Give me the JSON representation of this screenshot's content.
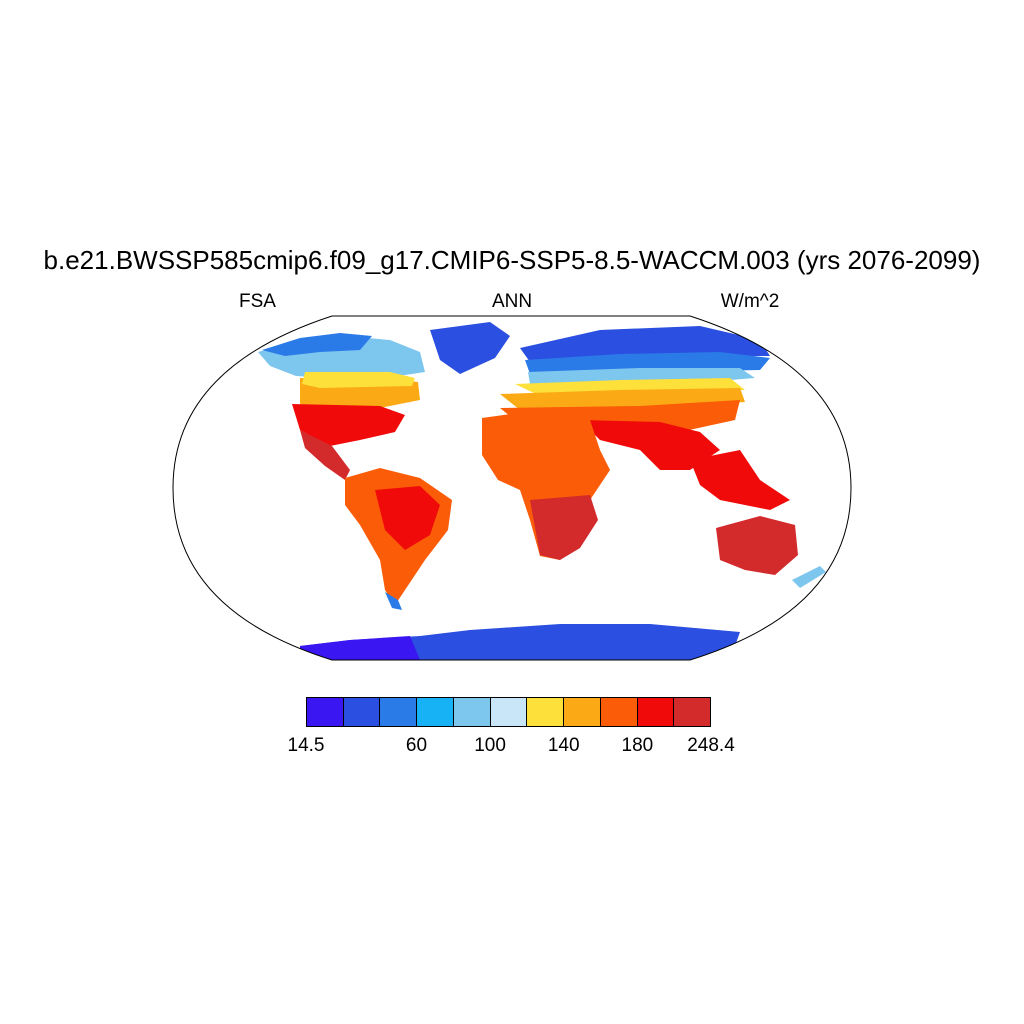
{
  "title": "b.e21.BWSSP585cmip6.f09_g17.CMIP6-SSP5-8.5-WACCM.003 (yrs 2076-2099)",
  "left_label": "FSA",
  "center_label": "ANN",
  "right_label": "W/m^2",
  "colorbar": {
    "colors": [
      "#3a17f2",
      "#2b4fe0",
      "#2a7ae8",
      "#17b1f5",
      "#7dc6ee",
      "#c8e6f7",
      "#fde03a",
      "#fbaa16",
      "#fb5c08",
      "#f00a0a",
      "#d32b2b"
    ],
    "labels": [
      "14.5",
      "60",
      "100",
      "140",
      "180",
      "248.4"
    ]
  }
}
